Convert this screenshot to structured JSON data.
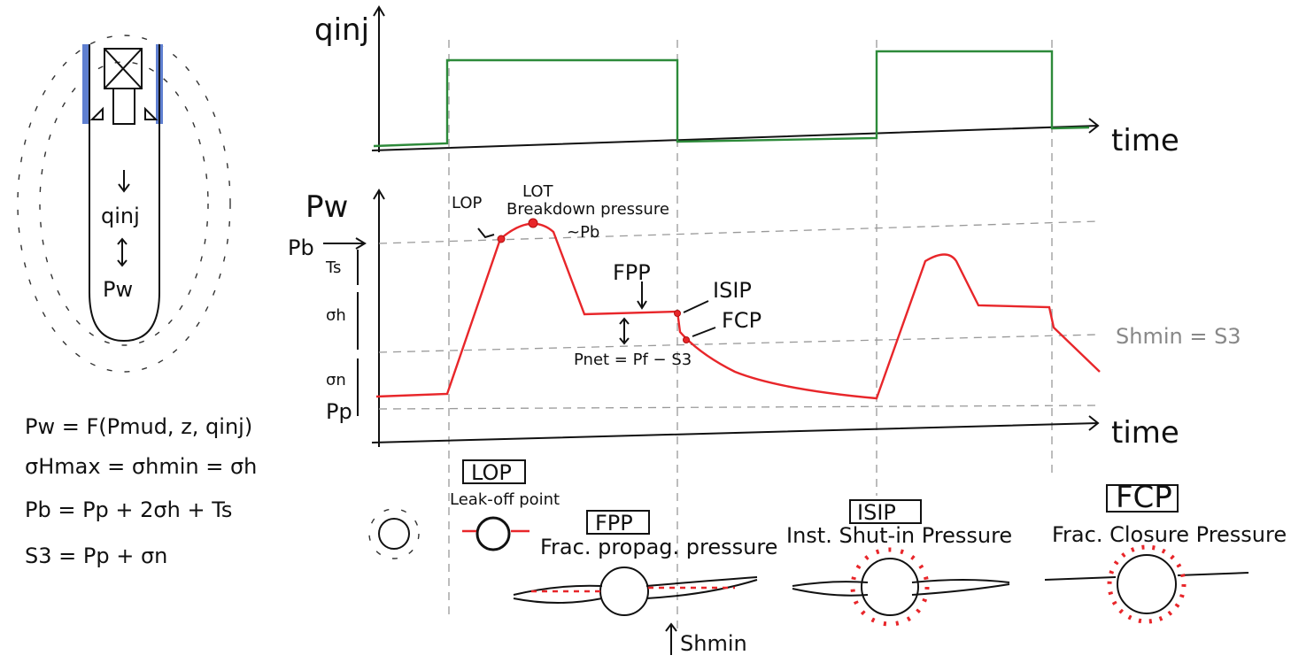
{
  "wellbore": {
    "flow_label": "qinj",
    "pressure_label": "Pw"
  },
  "equations": [
    "Pw = F(Pmud, z, qinj)",
    "σHmax = σhmin = σh",
    "Pb = Pp + 2σh + Ts",
    "S3 = Pp + σn"
  ],
  "injection_plot": {
    "y_label": "qinj",
    "x_label": "time"
  },
  "pressure_plot": {
    "y_label": "Pw",
    "x_label": "time",
    "levels": {
      "breakdown": "Pb",
      "tensile": "Ts",
      "stress_h": "σh",
      "stress_n": "σn",
      "pore": "Pp"
    },
    "annotations": {
      "lop": "LOP",
      "lot": "LOT",
      "breakdown": "Breakdown pressure",
      "approx_pb": "~Pb",
      "fpp": "FPP",
      "isip": "ISIP",
      "fcp": "FCP",
      "net_pressure": "Pnet = Pf − S3",
      "shmin": "Shmin = S3"
    }
  },
  "stages": [
    {
      "abbr": "LOP",
      "name": "Leak-off point"
    },
    {
      "abbr": "FPP",
      "name": "Frac. propag. pressure"
    },
    {
      "abbr": "ISIP",
      "name": "Inst. Shut-in Pressure"
    },
    {
      "abbr": "FCP",
      "name": "Frac. Closure Pressure"
    }
  ],
  "stress_arrow": "Shmin"
}
